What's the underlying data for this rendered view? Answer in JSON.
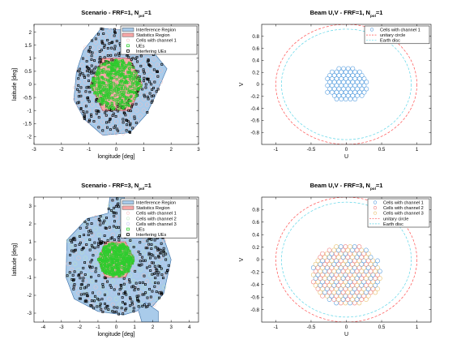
{
  "chart_data": [
    {
      "type": "scatter",
      "panel": "scenario",
      "title": "Scenario - FRF=1, N",
      "title_subscript": "pol",
      "title_suffix": "=1",
      "xlabel": "longitude [deg]",
      "ylabel": "latitude [deg]",
      "xlim": [
        -3,
        3
      ],
      "ylim": [
        -2.3,
        2.3
      ],
      "xticks": [
        "-3",
        "-2",
        "-1",
        "0",
        "1",
        "2",
        "3"
      ],
      "yticks": [
        "-2",
        "-1.5",
        "-1",
        "-0.5",
        "0",
        "0.5",
        "1",
        "1.5",
        "2"
      ],
      "grid": false,
      "legend_position": "top-right",
      "legend": [
        {
          "label": "Interference Region",
          "marker": "patch",
          "color": "#a9cbea"
        },
        {
          "label": "Statistics Region",
          "marker": "patch",
          "color": "#f4a5a5"
        },
        {
          "label": "Cells with channel 1",
          "marker": "circle",
          "color": "#f6c0c0"
        },
        {
          "label": "UEs",
          "marker": "square",
          "color": "#2ecc2e"
        },
        {
          "label": "Interfering UEs",
          "marker": "square",
          "color": "#000000"
        }
      ],
      "interference_region": [
        [
          -0.55,
          2.15
        ],
        [
          0.6,
          2.05
        ],
        [
          1.3,
          1.3
        ],
        [
          1.85,
          0.6
        ],
        [
          1.4,
          -0.5
        ],
        [
          1.1,
          -1.15
        ],
        [
          0.5,
          -1.85
        ],
        [
          -0.5,
          -1.95
        ],
        [
          -1.15,
          -1.35
        ],
        [
          -1.55,
          -0.6
        ],
        [
          -1.45,
          0.5
        ],
        [
          -1.2,
          1.3
        ]
      ],
      "statistics_region": [
        [
          -0.5,
          1.0
        ],
        [
          0.5,
          1.0
        ],
        [
          0.95,
          0.0
        ],
        [
          0.5,
          -1.0
        ],
        [
          -0.5,
          -1.0
        ],
        [
          -0.95,
          0.0
        ]
      ],
      "ue_region": {
        "center": [
          0,
          0
        ],
        "radius": 1.0
      },
      "interfering_ue_region": {
        "center": [
          0,
          0
        ],
        "radius": 1.75
      }
    },
    {
      "type": "scatter",
      "panel": "beam",
      "title": "Beam U,V - FRF=1, N",
      "title_subscript": "pol",
      "title_suffix": "=1",
      "xlabel": "U",
      "ylabel": "V",
      "xlim": [
        -1.2,
        1.2
      ],
      "ylim": [
        -1.0,
        1.0
      ],
      "xticks": [
        "-1",
        "-0.5",
        "0",
        "0.5",
        "1"
      ],
      "yticks": [
        "-0.8",
        "-0.6",
        "-0.4",
        "-0.2",
        "0",
        "0.2",
        "0.4",
        "0.6",
        "0.8"
      ],
      "grid": false,
      "legend_position": "top-right",
      "legend": [
        {
          "label": "Cells with channel 1",
          "marker": "circle",
          "color": "#5aa0e0"
        },
        {
          "label": "unitary circle",
          "marker": "dashed",
          "color": "#ff5050"
        },
        {
          "label": "Earth disc",
          "marker": "dashed",
          "color": "#5fd6e8"
        }
      ],
      "cells": {
        "pitch": 0.065,
        "region_radius": 0.3,
        "center": [
          0,
          0
        ]
      },
      "unitary_circle_radius": 1.0,
      "earth_disc_radius": 0.92
    },
    {
      "type": "scatter",
      "panel": "scenario",
      "title": "Scenario - FRF=3, N",
      "title_subscript": "pol",
      "title_suffix": "=1",
      "xlabel": "longitude [deg]",
      "ylabel": "latitude [deg]",
      "xlim": [
        -4.5,
        4.5
      ],
      "ylim": [
        -3.5,
        3.5
      ],
      "xticks": [
        "-4",
        "-3",
        "-2",
        "-1",
        "0",
        "1",
        "2",
        "3",
        "4"
      ],
      "yticks": [
        "-3",
        "-2",
        "-1",
        "0",
        "1",
        "2",
        "3"
      ],
      "grid": false,
      "legend_position": "top-right",
      "legend": [
        {
          "label": "Interference Region",
          "marker": "patch",
          "color": "#a9cbea"
        },
        {
          "label": "Statistics Region",
          "marker": "patch",
          "color": "#f4a5a5"
        },
        {
          "label": "Cells with channel 1",
          "marker": "circle",
          "color": "#f6c0c0"
        },
        {
          "label": "Cells with channel 2",
          "marker": "circle",
          "color": "#c0e6c0"
        },
        {
          "label": "Cells with channel 3",
          "marker": "circle",
          "color": "#c6c6ee"
        },
        {
          "label": "UEs",
          "marker": "square",
          "color": "#2ecc2e"
        },
        {
          "label": "Interfering UEs",
          "marker": "square",
          "color": "#000000"
        }
      ],
      "interference_region": [
        [
          -0.35,
          3.5
        ],
        [
          0.45,
          3.5
        ],
        [
          0.25,
          2.6
        ],
        [
          2.4,
          1.8
        ],
        [
          3.0,
          0.0
        ],
        [
          2.6,
          -1.9
        ],
        [
          2.0,
          -2.6
        ],
        [
          0.4,
          -3.1
        ],
        [
          -1.0,
          -2.9
        ],
        [
          -2.3,
          -2.2
        ],
        [
          -2.75,
          -1.0
        ],
        [
          -2.7,
          1.1
        ],
        [
          -1.6,
          2.3
        ],
        [
          -0.45,
          2.6
        ]
      ],
      "interference_tail": [
        [
          1.6,
          -2.4
        ],
        [
          2.3,
          -2.9
        ],
        [
          2.3,
          -3.5
        ],
        [
          1.4,
          -3.5
        ],
        [
          1.2,
          -2.8
        ]
      ],
      "statistics_region": [
        [
          -0.6,
          1.0
        ],
        [
          0.5,
          1.0
        ],
        [
          1.0,
          0.0
        ],
        [
          0.5,
          -1.0
        ],
        [
          -0.6,
          -1.0
        ],
        [
          -1.0,
          0.0
        ]
      ],
      "ue_region": {
        "center": [
          0,
          0
        ],
        "radius": 1.0
      },
      "interfering_ue_region": {
        "center": [
          0,
          0
        ],
        "radius": 2.6
      }
    },
    {
      "type": "scatter",
      "panel": "beam",
      "title": "Beam U,V - FRF=3, N",
      "title_subscript": "pol",
      "title_suffix": "=1",
      "xlabel": "U",
      "ylabel": "V",
      "xlim": [
        -1.2,
        1.2
      ],
      "ylim": [
        -1.0,
        1.0
      ],
      "xticks": [
        "-1",
        "-0.5",
        "0",
        "0.5",
        "1"
      ],
      "yticks": [
        "-0.8",
        "-0.6",
        "-0.4",
        "-0.2",
        "0",
        "0.2",
        "0.4",
        "0.6",
        "0.8"
      ],
      "grid": false,
      "legend_position": "top-right",
      "legend": [
        {
          "label": "Cells with channel 1",
          "marker": "circle",
          "color": "#5aa0e0"
        },
        {
          "label": "Cells with channel 2",
          "marker": "circle",
          "color": "#f08080"
        },
        {
          "label": "Cells with channel 3",
          "marker": "circle",
          "color": "#e8c070"
        },
        {
          "label": "unitary circle",
          "marker": "dashed",
          "color": "#ff5050"
        },
        {
          "label": "Earth disc",
          "marker": "dashed",
          "color": "#5fd6e8"
        }
      ],
      "cells": {
        "pitch": 0.065,
        "region_radius": 0.5,
        "center": [
          0,
          -0.25
        ]
      },
      "unitary_circle_radius": 1.0,
      "earth_disc_radius": 0.92
    }
  ]
}
